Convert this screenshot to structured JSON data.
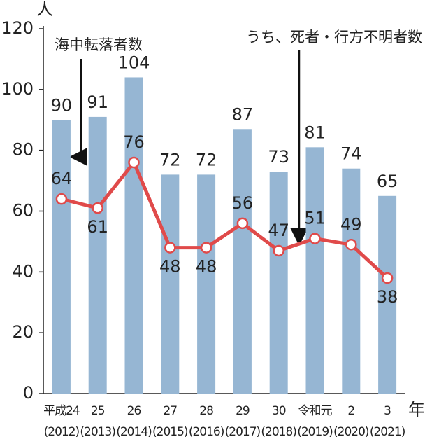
{
  "chart_data": {
    "type": "bar-line",
    "y_unit": "人",
    "x_unit": "年",
    "categories": [
      "平成24",
      "25",
      "26",
      "27",
      "28",
      "29",
      "30",
      "令和元",
      "2",
      "3"
    ],
    "category_years": [
      "(2012)",
      "(2013)",
      "(2014)",
      "(2015)",
      "(2016)",
      "(2017)",
      "(2018)",
      "(2019)",
      "(2020)",
      "(2021)"
    ],
    "series": [
      {
        "name": "海中転落者数",
        "type": "bar",
        "color": "#96b6d3",
        "values": [
          90,
          91,
          104,
          72,
          72,
          87,
          73,
          81,
          74,
          65
        ]
      },
      {
        "name": "うち、死者・行方不明者数",
        "type": "line",
        "color": "#e04a4a",
        "values": [
          64,
          61,
          76,
          48,
          48,
          56,
          47,
          51,
          49,
          38
        ]
      }
    ],
    "ylim": [
      0,
      120
    ],
    "yticks": [
      0,
      20,
      40,
      60,
      80,
      100,
      120
    ]
  }
}
